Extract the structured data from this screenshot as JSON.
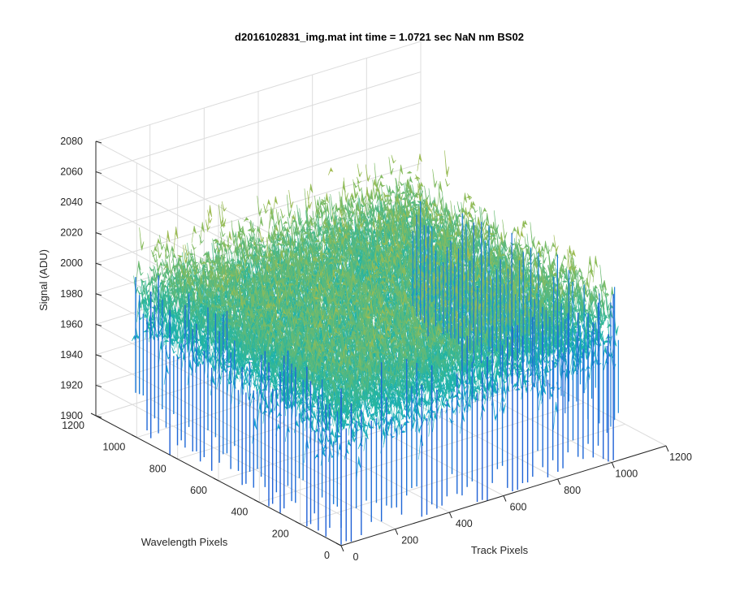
{
  "chart_data": {
    "type": "surface",
    "title": "d2016102831_img.mat int time = 1.0721 sec  NaN nm BS02",
    "xlabel": "Track Pixels",
    "ylabel": "Wavelength Pixels",
    "zlabel": "Signal (ADU)",
    "xlim": [
      0,
      1200
    ],
    "ylim": [
      0,
      1200
    ],
    "zlim": [
      1900,
      2080
    ],
    "xticks": [
      "0",
      "200",
      "400",
      "600",
      "800",
      "1000",
      "1200"
    ],
    "yticks": [
      "0",
      "200",
      "400",
      "600",
      "800",
      "1000",
      "1200"
    ],
    "zticks": [
      "1900",
      "1920",
      "1940",
      "1960",
      "1980",
      "2000",
      "2020",
      "2040",
      "2060",
      "2080"
    ],
    "data_extent": {
      "x": [
        0,
        1024
      ],
      "y": [
        0,
        1024
      ]
    },
    "signal_range_approx": [
      1900,
      2065
    ],
    "signal_mean_approx": 1990,
    "grid": true,
    "colormap": [
      "#1f5fd6",
      "#17a0dc",
      "#21b5a3",
      "#8fbc5a",
      "#d9b838"
    ]
  }
}
